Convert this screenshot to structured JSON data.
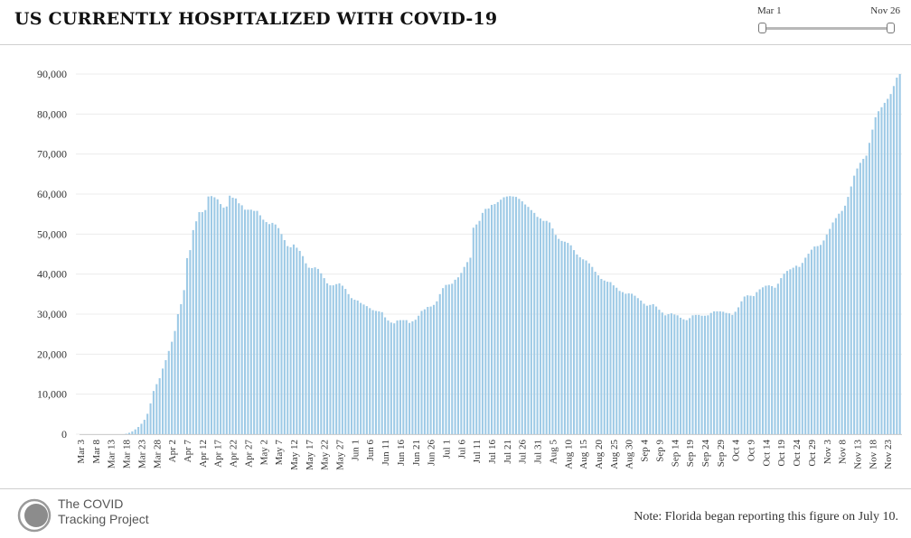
{
  "header": {
    "title": "US CURRENTLY HOSPITALIZED WITH COVID-19"
  },
  "range_slider": {
    "start_label": "Mar 1",
    "end_label": "Nov 26",
    "start_fraction": 0.0,
    "end_fraction": 1.0
  },
  "footer": {
    "logo_line1": "The COVID",
    "logo_line2": "Tracking Project",
    "note": "Note: Florida began reporting this figure on July 10."
  },
  "colors": {
    "bar": "#9ecae6",
    "grid": "#ececec",
    "text": "#333333"
  },
  "chart_data": {
    "type": "bar",
    "title": "US CURRENTLY HOSPITALIZED WITH COVID-19",
    "xlabel": "",
    "ylabel": "",
    "ylim": [
      0,
      90000
    ],
    "yticks": [
      0,
      10000,
      20000,
      30000,
      40000,
      50000,
      60000,
      70000,
      80000,
      90000
    ],
    "ytick_labels": [
      "0",
      "10,000",
      "20,000",
      "30,000",
      "40,000",
      "50,000",
      "60,000",
      "70,000",
      "80,000",
      "90,000"
    ],
    "grid": true,
    "legend": "none",
    "x_start": "Mar 3",
    "x_end": "Nov 26",
    "x_tick_labels": [
      "Mar 3",
      "Mar 8",
      "Mar 13",
      "Mar 18",
      "Mar 23",
      "Mar 28",
      "Apr 2",
      "Apr 7",
      "Apr 12",
      "Apr 17",
      "Apr 22",
      "Apr 27",
      "May 2",
      "May 7",
      "May 12",
      "May 17",
      "May 22",
      "May 27",
      "Jun 1",
      "Jun 6",
      "Jun 11",
      "Jun 16",
      "Jun 21",
      "Jun 26",
      "Jul 1",
      "Jul 6",
      "Jul 11",
      "Jul 16",
      "Jul 21",
      "Jul 26",
      "Jul 31",
      "Aug 5",
      "Aug 10",
      "Aug 15",
      "Aug 20",
      "Aug 25",
      "Aug 30",
      "Sep 4",
      "Sep 9",
      "Sep 14",
      "Sep 19",
      "Sep 24",
      "Sep 29",
      "Oct 4",
      "Oct 9",
      "Oct 14",
      "Oct 19",
      "Oct 24",
      "Oct 29",
      "Nov 3",
      "Nov 8",
      "Nov 13",
      "Nov 18",
      "Nov 23"
    ],
    "values": [
      0,
      0,
      0,
      0,
      0,
      0,
      0,
      0,
      0,
      0,
      0,
      0,
      0,
      0,
      0,
      120,
      350,
      700,
      1200,
      1800,
      2600,
      3600,
      5100,
      7700,
      10800,
      12500,
      14000,
      16400,
      18500,
      20800,
      23100,
      25800,
      30000,
      32500,
      36000,
      44000,
      46000,
      51000,
      53200,
      55500,
      55500,
      56000,
      59400,
      59500,
      59200,
      58700,
      57500,
      56600,
      56900,
      59600,
      59100,
      58900,
      57700,
      57200,
      56100,
      56100,
      56100,
      55800,
      55800,
      54700,
      53600,
      53000,
      52500,
      52800,
      52400,
      51500,
      50000,
      48500,
      47000,
      46700,
      47400,
      46600,
      45800,
      44500,
      42700,
      41600,
      41500,
      41700,
      41300,
      40200,
      39000,
      37700,
      37200,
      37200,
      37500,
      37700,
      37100,
      36300,
      35000,
      34000,
      33600,
      33400,
      32800,
      32400,
      32000,
      31500,
      31000,
      30800,
      30700,
      30500,
      29200,
      28400,
      27900,
      27700,
      28400,
      28500,
      28500,
      28500,
      27800,
      28200,
      28600,
      29600,
      30800,
      31200,
      31800,
      31900,
      32300,
      33200,
      35000,
      36500,
      37300,
      37400,
      37600,
      38600,
      39200,
      40300,
      41800,
      43000,
      44100,
      51600,
      52400,
      53300,
      55300,
      56300,
      56400,
      57300,
      57500,
      58000,
      58600,
      59200,
      59400,
      59500,
      59400,
      59300,
      58800,
      58200,
      57400,
      56800,
      56000,
      55300,
      54300,
      53900,
      53300,
      53300,
      52900,
      51400,
      49800,
      48800,
      48300,
      48100,
      47800,
      47200,
      46000,
      44900,
      44200,
      43700,
      43400,
      42700,
      41800,
      40600,
      39700,
      38800,
      38400,
      38100,
      38000,
      37200,
      36600,
      35800,
      35500,
      35100,
      35200,
      35100,
      34600,
      34000,
      33400,
      32600,
      32100,
      32300,
      32500,
      31900,
      31100,
      30400,
      29700,
      30000,
      30200,
      29900,
      29700,
      29100,
      28700,
      28500,
      29000,
      29700,
      29800,
      29800,
      29600,
      29600,
      29700,
      30300,
      30700,
      30700,
      30700,
      30600,
      30300,
      30200,
      29800,
      30600,
      31700,
      33200,
      34400,
      34700,
      34600,
      34500,
      35500,
      36200,
      36700,
      37100,
      37200,
      37000,
      36600,
      37600,
      39000,
      40100,
      40800,
      41200,
      41600,
      42100,
      41800,
      42800,
      44100,
      45100,
      46100,
      46900,
      47000,
      47300,
      48400,
      49900,
      51300,
      52900,
      54000,
      55100,
      55800,
      57100,
      59300,
      61900,
      64600,
      66400,
      67800,
      68800,
      69600,
      72800,
      76100,
      79200,
      80700,
      81700,
      82800,
      83800,
      85000,
      87000,
      89100,
      90000
    ]
  }
}
